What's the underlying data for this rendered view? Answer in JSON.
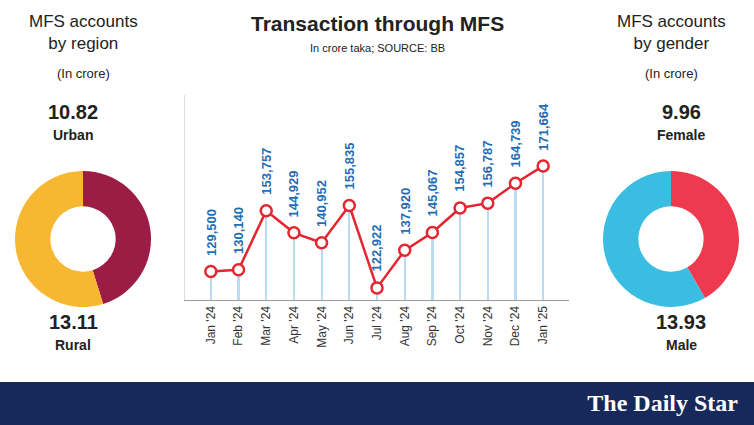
{
  "chart_data": [
    {
      "type": "pie",
      "title": "MFS accounts by region",
      "subtitle": "(In crore)",
      "categories": [
        "Urban",
        "Rural"
      ],
      "values": [
        10.82,
        13.11
      ],
      "colors": [
        "#9b1c45",
        "#f7b731"
      ],
      "data_labels": true
    },
    {
      "type": "line",
      "title": "Transaction through MFS",
      "subtitle": "In crore taka; SOURCE: BB",
      "categories": [
        "Jan '24",
        "Feb '24",
        "Mar '24",
        "Apr '24",
        "May '24",
        "Jun '24",
        "Jul '24",
        "Aug '24",
        "Sep '24",
        "Oct '24",
        "Nov '24",
        "Dec '24",
        "Jan '25"
      ],
      "values": [
        129500,
        130140,
        153757,
        144929,
        140952,
        155835,
        122922,
        137920,
        145067,
        154857,
        156787,
        164739,
        171664
      ],
      "value_labels": [
        "129,500",
        "130,140",
        "153,757",
        "144,929",
        "140,952",
        "155,835",
        "122,922",
        "137,920",
        "145,067",
        "154,857",
        "156,787",
        "164,739",
        "171,664"
      ],
      "color": "#e3262f",
      "marker": "circle",
      "data_labels": true,
      "ylim": [
        118000,
        200000
      ],
      "tick_labels": "x",
      "grid": false
    },
    {
      "type": "pie",
      "title": "MFS accounts by gender",
      "subtitle": "(In crore)",
      "categories": [
        "Female",
        "Male"
      ],
      "values": [
        9.96,
        13.93
      ],
      "colors": [
        "#ee3a4f",
        "#39bde0"
      ],
      "data_labels": true
    }
  ],
  "footer": "The Daily Star"
}
